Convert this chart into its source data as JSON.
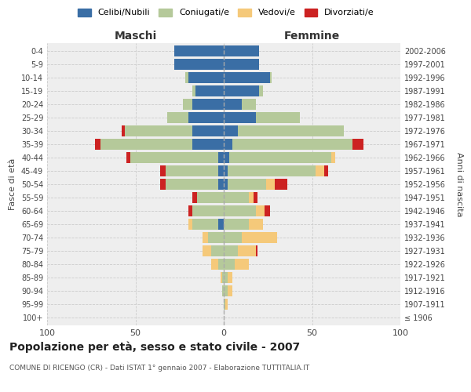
{
  "age_groups": [
    "100+",
    "95-99",
    "90-94",
    "85-89",
    "80-84",
    "75-79",
    "70-74",
    "65-69",
    "60-64",
    "55-59",
    "50-54",
    "45-49",
    "40-44",
    "35-39",
    "30-34",
    "25-29",
    "20-24",
    "15-19",
    "10-14",
    "5-9",
    "0-4"
  ],
  "birth_years": [
    "≤ 1906",
    "1907-1911",
    "1912-1916",
    "1917-1921",
    "1922-1926",
    "1927-1931",
    "1932-1936",
    "1937-1941",
    "1942-1946",
    "1947-1951",
    "1952-1956",
    "1957-1961",
    "1962-1966",
    "1967-1971",
    "1972-1976",
    "1977-1981",
    "1982-1986",
    "1987-1991",
    "1992-1996",
    "1997-2001",
    "2002-2006"
  ],
  "colors": {
    "celibi": "#3a6ea5",
    "coniugati": "#b5c99a",
    "vedovi": "#f5c97a",
    "divorziati": "#cc2222"
  },
  "maschi": {
    "celibi": [
      0,
      0,
      0,
      0,
      0,
      0,
      0,
      3,
      0,
      0,
      3,
      3,
      3,
      18,
      18,
      20,
      18,
      16,
      20,
      28,
      28
    ],
    "coniugati": [
      0,
      0,
      1,
      1,
      3,
      7,
      9,
      15,
      18,
      15,
      30,
      30,
      50,
      52,
      38,
      12,
      5,
      2,
      2,
      0,
      0
    ],
    "vedovi": [
      0,
      0,
      0,
      1,
      4,
      5,
      3,
      2,
      0,
      0,
      0,
      0,
      0,
      0,
      0,
      0,
      0,
      0,
      0,
      0,
      0
    ],
    "divorziati": [
      0,
      0,
      0,
      0,
      0,
      0,
      0,
      0,
      2,
      3,
      3,
      3,
      2,
      3,
      2,
      0,
      0,
      0,
      0,
      0,
      0
    ]
  },
  "femmine": {
    "nubili": [
      0,
      0,
      0,
      0,
      0,
      0,
      0,
      0,
      0,
      0,
      2,
      2,
      3,
      5,
      8,
      18,
      10,
      20,
      26,
      20,
      20
    ],
    "coniugate": [
      0,
      1,
      2,
      2,
      6,
      8,
      10,
      14,
      18,
      14,
      22,
      50,
      58,
      68,
      60,
      25,
      8,
      2,
      1,
      0,
      0
    ],
    "vedove": [
      0,
      1,
      3,
      3,
      8,
      10,
      20,
      8,
      5,
      3,
      5,
      5,
      2,
      0,
      0,
      0,
      0,
      0,
      0,
      0,
      0
    ],
    "divorziate": [
      0,
      0,
      0,
      0,
      0,
      1,
      0,
      0,
      3,
      2,
      7,
      2,
      0,
      6,
      0,
      0,
      0,
      0,
      0,
      0,
      0
    ]
  },
  "title": "Popolazione per età, sesso e stato civile - 2007",
  "subtitle": "COMUNE DI RICENGO (CR) - Dati ISTAT 1° gennaio 2007 - Elaborazione TUTTITALIA.IT",
  "xlabel_left": "Maschi",
  "xlabel_right": "Femmine",
  "ylabel_left": "Fasce di età",
  "ylabel_right": "Anni di nascita",
  "xlim": 100,
  "legend_labels": [
    "Celibi/Nubili",
    "Coniugati/e",
    "Vedovi/e",
    "Divorziati/e"
  ],
  "bg_color": "#ffffff",
  "plot_bg": "#eeeeee",
  "grid_color": "#cccccc"
}
